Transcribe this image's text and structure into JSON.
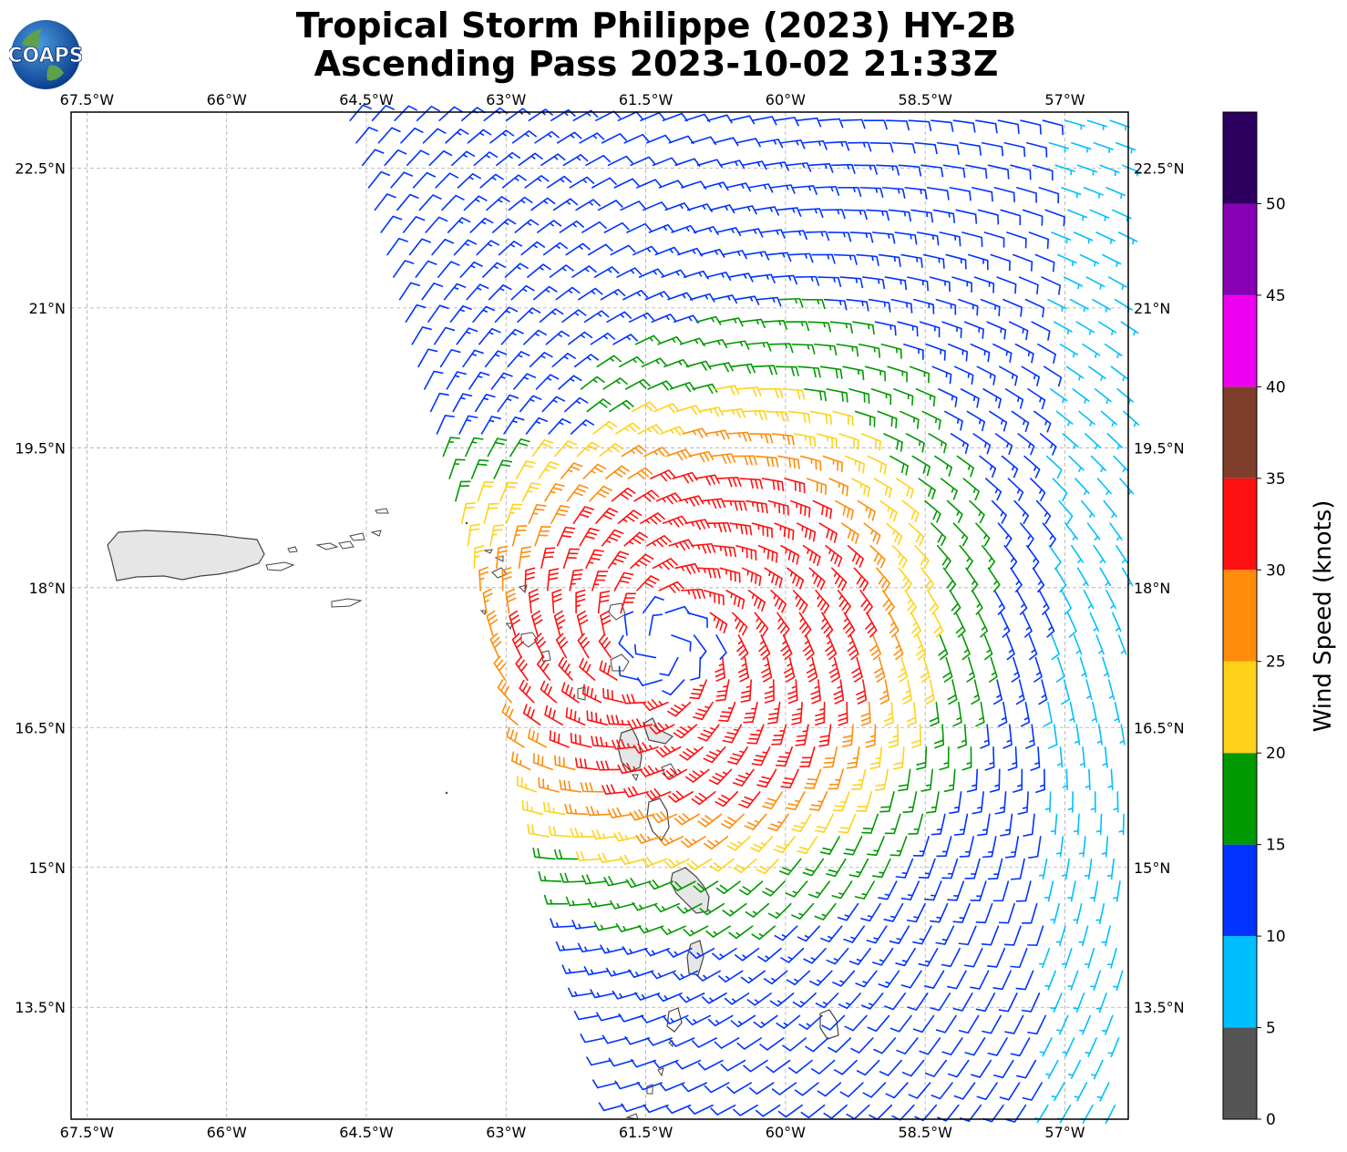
{
  "title": {
    "line1": "Tropical Storm Philippe (2023) HY-2B",
    "line2": "Ascending Pass 2023-10-02 21:33Z"
  },
  "logo": {
    "text": "COAPS",
    "icon": "globe-icon"
  },
  "map": {
    "lon_range": [
      -67.67,
      -56.32
    ],
    "lat_range": [
      12.3,
      23.1
    ],
    "lon_ticks": [
      {
        "value": -67.5,
        "label": "67.5°W"
      },
      {
        "value": -66.0,
        "label": "66°W"
      },
      {
        "value": -64.5,
        "label": "64.5°W"
      },
      {
        "value": -63.0,
        "label": "63°W"
      },
      {
        "value": -61.5,
        "label": "61.5°W"
      },
      {
        "value": -60.0,
        "label": "60°W"
      },
      {
        "value": -58.5,
        "label": "58.5°W"
      },
      {
        "value": -57.0,
        "label": "57°W"
      }
    ],
    "lat_ticks": [
      {
        "value": 22.5,
        "label": "22.5°N"
      },
      {
        "value": 21.0,
        "label": "21°N"
      },
      {
        "value": 19.5,
        "label": "19.5°N"
      },
      {
        "value": 18.0,
        "label": "18°N"
      },
      {
        "value": 16.5,
        "label": "16.5°N"
      },
      {
        "value": 15.0,
        "label": "15°N"
      },
      {
        "value": 13.5,
        "label": "13.5°N"
      }
    ],
    "gridlines": true,
    "storm_center": {
      "lon": -61.3,
      "lat": 17.4
    }
  },
  "colorbar": {
    "label": "Wind Speed (knots)",
    "max": 55,
    "bins": [
      {
        "from": 0,
        "to": 5,
        "color": "#555555"
      },
      {
        "from": 5,
        "to": 10,
        "color": "#00bfff"
      },
      {
        "from": 10,
        "to": 15,
        "color": "#0033ff"
      },
      {
        "from": 15,
        "to": 20,
        "color": "#009900"
      },
      {
        "from": 20,
        "to": 25,
        "color": "#ffd21a"
      },
      {
        "from": 25,
        "to": 30,
        "color": "#ff8c0a"
      },
      {
        "from": 30,
        "to": 35,
        "color": "#ff1010"
      },
      {
        "from": 35,
        "to": 40,
        "color": "#7f3d2c"
      },
      {
        "from": 40,
        "to": 45,
        "color": "#f000f0"
      },
      {
        "from": 45,
        "to": 50,
        "color": "#8800b4"
      },
      {
        "from": 50,
        "to": 55,
        "color": "#2d0060"
      }
    ],
    "ticks": [
      "0",
      "5",
      "10",
      "15",
      "20",
      "25",
      "30",
      "35",
      "40",
      "45",
      "50"
    ]
  },
  "land": [
    {
      "name": "Puerto Rico",
      "lon": -65.2,
      "lat": 18.25
    },
    {
      "name": "Guadeloupe",
      "lon": -61.55,
      "lat": 16.2
    },
    {
      "name": "Martinique",
      "lon": -61.0,
      "lat": 14.65
    }
  ]
}
